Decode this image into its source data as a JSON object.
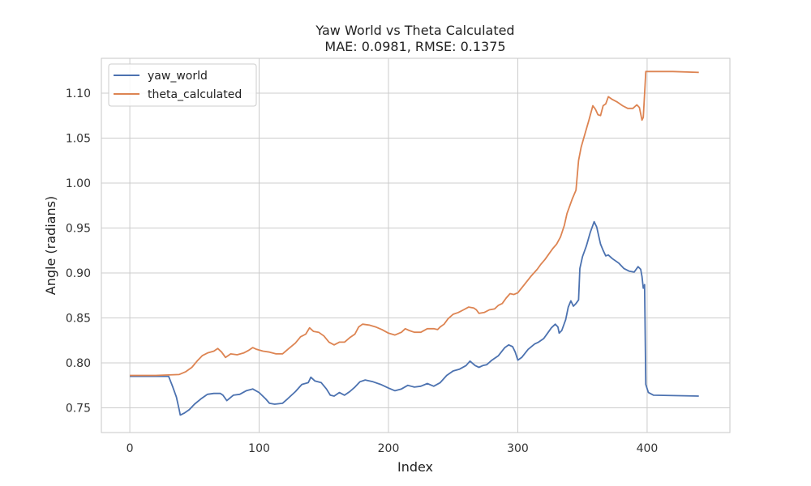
{
  "chart_data": {
    "type": "line",
    "title": "Yaw World vs Theta Calculated",
    "subtitle": "MAE: 0.0981, RMSE: 0.1375",
    "xlabel": "Index",
    "ylabel": "Angle (radians)",
    "xlim": [
      -22,
      464
    ],
    "ylim": [
      0.7225,
      1.1387
    ],
    "x_ticks": [
      0,
      100,
      200,
      300,
      400
    ],
    "y_ticks": [
      0.75,
      0.8,
      0.85,
      0.9,
      0.95,
      1.0,
      1.05,
      1.1
    ],
    "grid": true,
    "legend_position": "top-left",
    "series": [
      {
        "name": "yaw_world",
        "color": "#4c72b0",
        "points": [
          [
            0,
            0.785
          ],
          [
            30,
            0.785
          ],
          [
            33,
            0.774
          ],
          [
            36,
            0.762
          ],
          [
            38,
            0.749
          ],
          [
            39,
            0.742
          ],
          [
            42,
            0.744
          ],
          [
            46,
            0.748
          ],
          [
            50,
            0.754
          ],
          [
            55,
            0.76
          ],
          [
            60,
            0.765
          ],
          [
            65,
            0.766
          ],
          [
            70,
            0.766
          ],
          [
            72,
            0.764
          ],
          [
            75,
            0.758
          ],
          [
            80,
            0.764
          ],
          [
            85,
            0.765
          ],
          [
            90,
            0.769
          ],
          [
            95,
            0.771
          ],
          [
            100,
            0.767
          ],
          [
            105,
            0.76
          ],
          [
            108,
            0.755
          ],
          [
            112,
            0.754
          ],
          [
            118,
            0.755
          ],
          [
            122,
            0.76
          ],
          [
            128,
            0.768
          ],
          [
            133,
            0.776
          ],
          [
            138,
            0.778
          ],
          [
            140,
            0.784
          ],
          [
            143,
            0.78
          ],
          [
            148,
            0.778
          ],
          [
            152,
            0.771
          ],
          [
            155,
            0.764
          ],
          [
            158,
            0.763
          ],
          [
            162,
            0.767
          ],
          [
            166,
            0.764
          ],
          [
            170,
            0.768
          ],
          [
            174,
            0.773
          ],
          [
            178,
            0.779
          ],
          [
            182,
            0.781
          ],
          [
            188,
            0.779
          ],
          [
            194,
            0.776
          ],
          [
            200,
            0.772
          ],
          [
            205,
            0.769
          ],
          [
            210,
            0.771
          ],
          [
            215,
            0.775
          ],
          [
            220,
            0.773
          ],
          [
            225,
            0.774
          ],
          [
            230,
            0.777
          ],
          [
            235,
            0.774
          ],
          [
            240,
            0.778
          ],
          [
            245,
            0.786
          ],
          [
            250,
            0.791
          ],
          [
            255,
            0.793
          ],
          [
            260,
            0.797
          ],
          [
            263,
            0.802
          ],
          [
            267,
            0.797
          ],
          [
            270,
            0.795
          ],
          [
            273,
            0.797
          ],
          [
            276,
            0.798
          ],
          [
            280,
            0.803
          ],
          [
            285,
            0.808
          ],
          [
            290,
            0.817
          ],
          [
            293,
            0.82
          ],
          [
            296,
            0.818
          ],
          [
            298,
            0.812
          ],
          [
            300,
            0.803
          ],
          [
            303,
            0.806
          ],
          [
            308,
            0.815
          ],
          [
            313,
            0.821
          ],
          [
            316,
            0.823
          ],
          [
            320,
            0.827
          ],
          [
            323,
            0.833
          ],
          [
            326,
            0.839
          ],
          [
            329,
            0.843
          ],
          [
            331,
            0.84
          ],
          [
            332,
            0.833
          ],
          [
            334,
            0.836
          ],
          [
            337,
            0.848
          ],
          [
            339,
            0.862
          ],
          [
            341,
            0.869
          ],
          [
            343,
            0.863
          ],
          [
            345,
            0.866
          ],
          [
            347,
            0.87
          ],
          [
            348,
            0.905
          ],
          [
            350,
            0.918
          ],
          [
            353,
            0.93
          ],
          [
            356,
            0.945
          ],
          [
            359,
            0.957
          ],
          [
            361,
            0.951
          ],
          [
            364,
            0.932
          ],
          [
            366,
            0.925
          ],
          [
            368,
            0.919
          ],
          [
            370,
            0.92
          ],
          [
            373,
            0.916
          ],
          [
            378,
            0.911
          ],
          [
            382,
            0.905
          ],
          [
            386,
            0.902
          ],
          [
            390,
            0.901
          ],
          [
            393,
            0.907
          ],
          [
            395,
            0.904
          ],
          [
            396,
            0.896
          ],
          [
            397,
            0.883
          ],
          [
            398,
            0.887
          ],
          [
            399,
            0.776
          ],
          [
            401,
            0.767
          ],
          [
            405,
            0.764
          ],
          [
            440,
            0.763
          ]
        ]
      },
      {
        "name": "theta_calculated",
        "color": "#dd8452",
        "points": [
          [
            0,
            0.786
          ],
          [
            20,
            0.786
          ],
          [
            38,
            0.787
          ],
          [
            43,
            0.79
          ],
          [
            48,
            0.795
          ],
          [
            52,
            0.802
          ],
          [
            56,
            0.808
          ],
          [
            60,
            0.811
          ],
          [
            65,
            0.813
          ],
          [
            68,
            0.816
          ],
          [
            71,
            0.812
          ],
          [
            74,
            0.806
          ],
          [
            78,
            0.81
          ],
          [
            83,
            0.809
          ],
          [
            88,
            0.811
          ],
          [
            92,
            0.814
          ],
          [
            95,
            0.817
          ],
          [
            98,
            0.815
          ],
          [
            103,
            0.813
          ],
          [
            108,
            0.812
          ],
          [
            113,
            0.81
          ],
          [
            118,
            0.81
          ],
          [
            123,
            0.816
          ],
          [
            128,
            0.822
          ],
          [
            132,
            0.829
          ],
          [
            136,
            0.832
          ],
          [
            139,
            0.839
          ],
          [
            142,
            0.835
          ],
          [
            146,
            0.834
          ],
          [
            150,
            0.83
          ],
          [
            154,
            0.823
          ],
          [
            158,
            0.82
          ],
          [
            162,
            0.823
          ],
          [
            166,
            0.823
          ],
          [
            170,
            0.828
          ],
          [
            174,
            0.832
          ],
          [
            177,
            0.84
          ],
          [
            180,
            0.843
          ],
          [
            185,
            0.842
          ],
          [
            190,
            0.84
          ],
          [
            195,
            0.837
          ],
          [
            200,
            0.833
          ],
          [
            205,
            0.831
          ],
          [
            210,
            0.834
          ],
          [
            213,
            0.838
          ],
          [
            216,
            0.836
          ],
          [
            220,
            0.834
          ],
          [
            225,
            0.834
          ],
          [
            230,
            0.838
          ],
          [
            235,
            0.838
          ],
          [
            238,
            0.837
          ],
          [
            240,
            0.84
          ],
          [
            243,
            0.843
          ],
          [
            246,
            0.849
          ],
          [
            250,
            0.854
          ],
          [
            254,
            0.856
          ],
          [
            258,
            0.859
          ],
          [
            262,
            0.862
          ],
          [
            266,
            0.861
          ],
          [
            268,
            0.859
          ],
          [
            270,
            0.855
          ],
          [
            274,
            0.856
          ],
          [
            278,
            0.859
          ],
          [
            282,
            0.86
          ],
          [
            285,
            0.864
          ],
          [
            288,
            0.866
          ],
          [
            291,
            0.872
          ],
          [
            294,
            0.877
          ],
          [
            297,
            0.876
          ],
          [
            300,
            0.878
          ],
          [
            305,
            0.887
          ],
          [
            310,
            0.896
          ],
          [
            315,
            0.904
          ],
          [
            318,
            0.91
          ],
          [
            321,
            0.915
          ],
          [
            324,
            0.921
          ],
          [
            327,
            0.927
          ],
          [
            330,
            0.932
          ],
          [
            333,
            0.94
          ],
          [
            336,
            0.953
          ],
          [
            338,
            0.966
          ],
          [
            340,
            0.974
          ],
          [
            342,
            0.982
          ],
          [
            345,
            0.992
          ],
          [
            347,
            1.025
          ],
          [
            349,
            1.04
          ],
          [
            352,
            1.055
          ],
          [
            355,
            1.07
          ],
          [
            358,
            1.086
          ],
          [
            360,
            1.082
          ],
          [
            362,
            1.076
          ],
          [
            364,
            1.075
          ],
          [
            366,
            1.086
          ],
          [
            368,
            1.088
          ],
          [
            370,
            1.096
          ],
          [
            373,
            1.093
          ],
          [
            377,
            1.09
          ],
          [
            381,
            1.086
          ],
          [
            385,
            1.083
          ],
          [
            389,
            1.083
          ],
          [
            392,
            1.087
          ],
          [
            394,
            1.084
          ],
          [
            396,
            1.07
          ],
          [
            397,
            1.073
          ],
          [
            398,
            1.099
          ],
          [
            399,
            1.124
          ],
          [
            420,
            1.124
          ],
          [
            440,
            1.123
          ]
        ]
      }
    ]
  }
}
